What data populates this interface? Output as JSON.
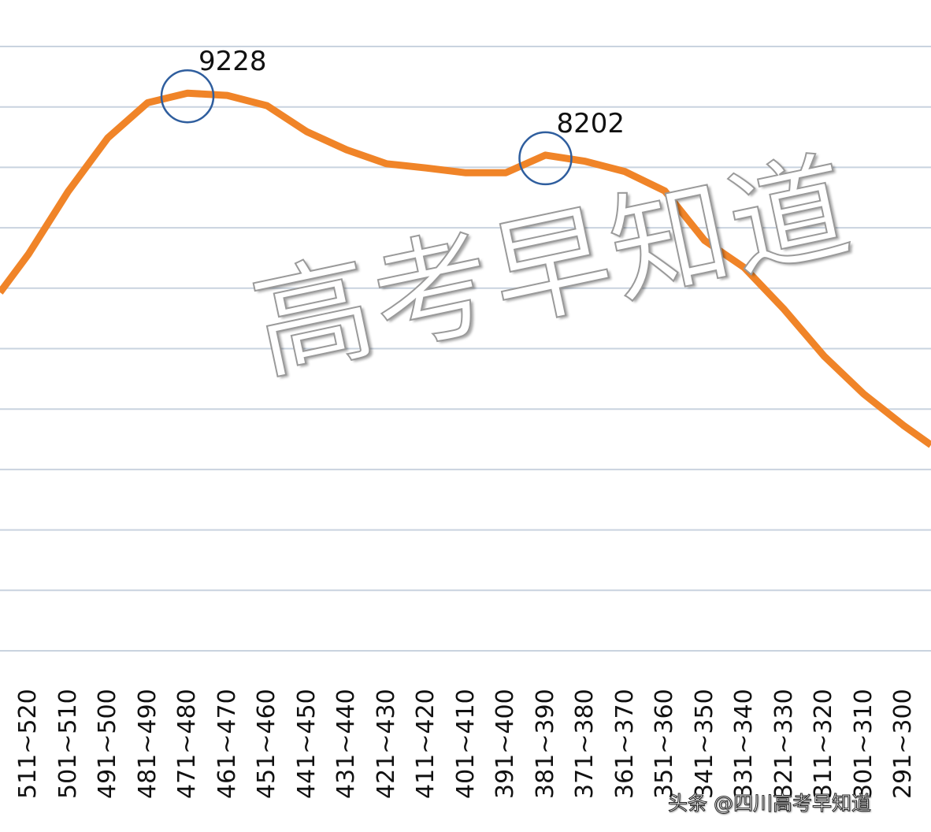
{
  "chart_data": {
    "type": "line",
    "title": "",
    "xlabel": "",
    "ylabel": "",
    "categories": [
      "511~520",
      "501~510",
      "491~500",
      "481~490",
      "471~480",
      "461~470",
      "451~460",
      "441~450",
      "431~440",
      "421~430",
      "411~420",
      "401~410",
      "391~400",
      "381~390",
      "371~380",
      "361~370",
      "351~360",
      "341~350",
      "331~340",
      "321~330",
      "311~320",
      "301~310",
      "291~300"
    ],
    "series": [
      {
        "values": [
          6560,
          7600,
          8490,
          9070,
          9228,
          9190,
          9020,
          8590,
          8290,
          8060,
          7990,
          7910,
          7910,
          8202,
          8100,
          7930,
          7610,
          6790,
          6340,
          5650,
          4880,
          4250,
          3730
        ],
        "color": "#F08428"
      }
    ],
    "ylim": [
      0,
      10000
    ],
    "grid_step": 1000,
    "grid": true,
    "y_tick_labels_visible": false,
    "annotations": [
      {
        "category": "471~480",
        "label": "9228",
        "marker": "circle",
        "color": "#2F5E9E"
      },
      {
        "category": "381~390",
        "label": "8202",
        "marker": "circle",
        "color": "#2F5E9E"
      }
    ]
  },
  "watermark": "高考早知道",
  "credit": "头条 @四川高考早知道"
}
